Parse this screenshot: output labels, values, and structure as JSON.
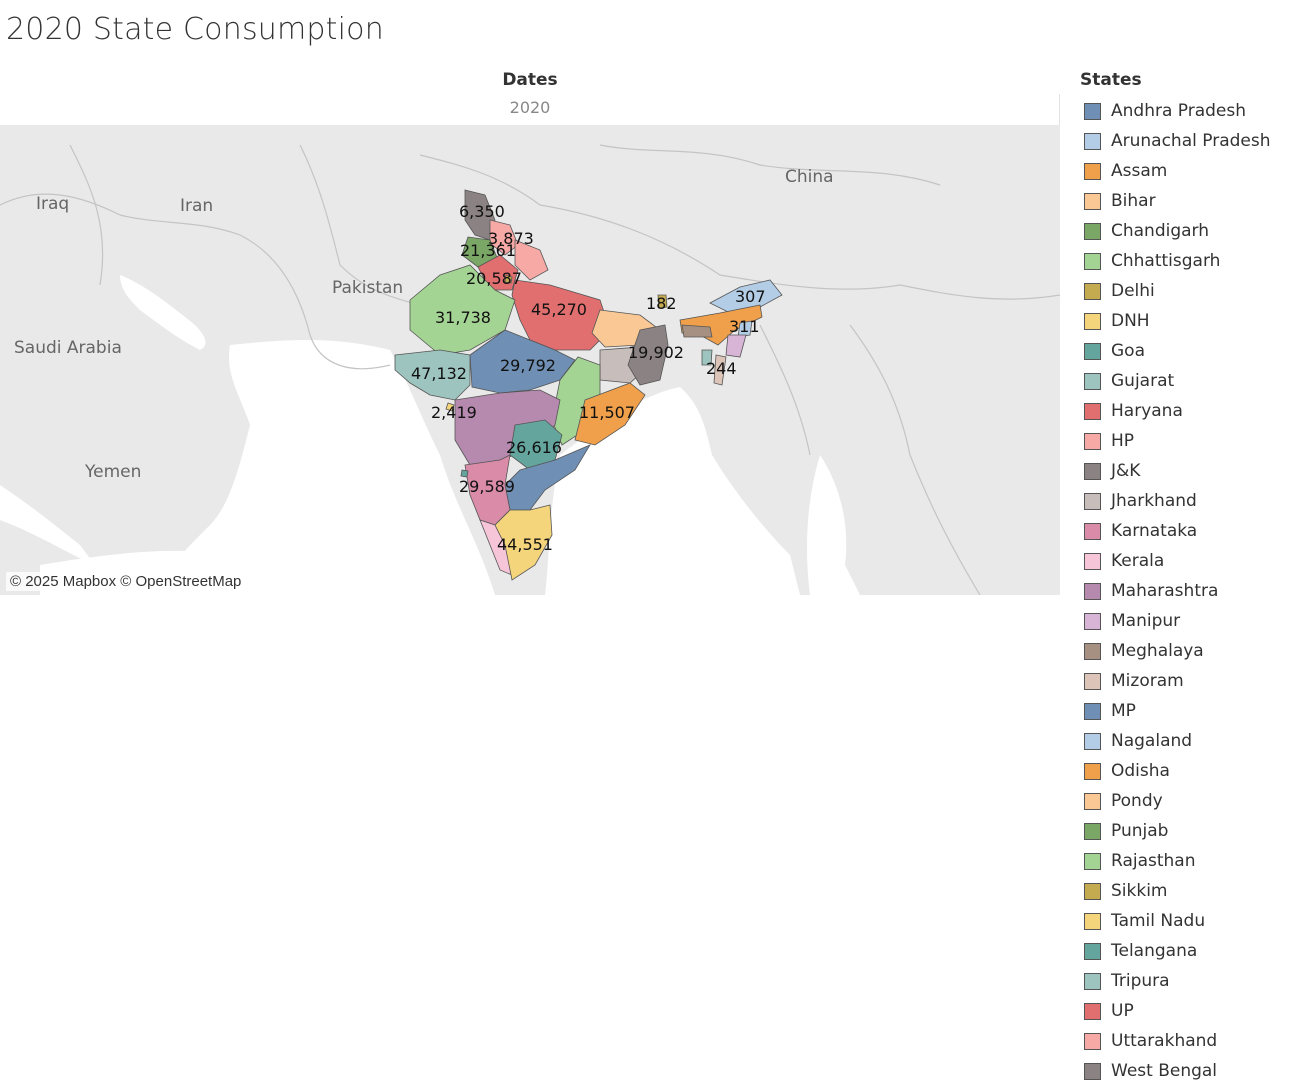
{
  "title": "2020 State Consumption",
  "dimension": {
    "header": "Dates",
    "value": "2020"
  },
  "map": {
    "attribution": "© 2025 Mapbox © OpenStreetMap",
    "countries": [
      "China",
      "Iraq",
      "Iran",
      "Pakistan",
      "Saudi Arabia",
      "Yemen"
    ],
    "values": [
      {
        "label": "6,350",
        "state": "J&K"
      },
      {
        "label": "3,873",
        "state": "HP"
      },
      {
        "label": "21,361",
        "state": "Punjab"
      },
      {
        "label": "20,587",
        "state": "Haryana"
      },
      {
        "label": "45,270",
        "state": "UP"
      },
      {
        "label": "31,738",
        "state": "Rajasthan"
      },
      {
        "label": "182",
        "state": "Sikkim"
      },
      {
        "label": "307",
        "state": "Arunachal Pradesh"
      },
      {
        "label": "311",
        "state": "Assam"
      },
      {
        "label": "19,902",
        "state": "West Bengal"
      },
      {
        "label": "244",
        "state": "Mizoram"
      },
      {
        "label": "29,792",
        "state": "MP"
      },
      {
        "label": "47,132",
        "state": "Gujarat"
      },
      {
        "label": "2,419",
        "state": "DNH"
      },
      {
        "label": "11,507",
        "state": "Odisha"
      },
      {
        "label": "26,616",
        "state": "Telangana"
      },
      {
        "label": "29,589",
        "state": "Karnataka"
      },
      {
        "label": "44,551",
        "state": "Tamil Nadu"
      }
    ]
  },
  "legend": {
    "title": "States",
    "items": [
      {
        "label": "Andhra Pradesh",
        "color": "#6f8fb4"
      },
      {
        "label": "Arunachal Pradesh",
        "color": "#b3cde6"
      },
      {
        "label": "Assam",
        "color": "#f0a04b"
      },
      {
        "label": "Bihar",
        "color": "#f9c894"
      },
      {
        "label": "Chandigarh",
        "color": "#7aa765"
      },
      {
        "label": "Chhattisgarh",
        "color": "#a4d493"
      },
      {
        "label": "Delhi",
        "color": "#c5ab50"
      },
      {
        "label": "DNH",
        "color": "#f5d57b"
      },
      {
        "label": "Goa",
        "color": "#64a59e"
      },
      {
        "label": "Gujarat",
        "color": "#9dc4bf"
      },
      {
        "label": "Haryana",
        "color": "#e16f6f"
      },
      {
        "label": "HP",
        "color": "#f7a9a6"
      },
      {
        "label": "J&K",
        "color": "#8b8383"
      },
      {
        "label": "Jharkhand",
        "color": "#c7bdbb"
      },
      {
        "label": "Karnataka",
        "color": "#d98ba8"
      },
      {
        "label": "Kerala",
        "color": "#f7c5d8"
      },
      {
        "label": "Maharashtra",
        "color": "#b68aaf"
      },
      {
        "label": "Manipur",
        "color": "#d8b5d6"
      },
      {
        "label": "Meghalaya",
        "color": "#a69081"
      },
      {
        "label": "Mizoram",
        "color": "#dcc4b9"
      },
      {
        "label": "MP",
        "color": "#6f8fb4"
      },
      {
        "label": "Nagaland",
        "color": "#b3cde6"
      },
      {
        "label": "Odisha",
        "color": "#f0a04b"
      },
      {
        "label": "Pondy",
        "color": "#f9c894"
      },
      {
        "label": "Punjab",
        "color": "#7aa765"
      },
      {
        "label": "Rajasthan",
        "color": "#a4d493"
      },
      {
        "label": "Sikkim",
        "color": "#c5ab50"
      },
      {
        "label": "Tamil Nadu",
        "color": "#f5d57b"
      },
      {
        "label": "Telangana",
        "color": "#64a59e"
      },
      {
        "label": "Tripura",
        "color": "#9dc4bf"
      },
      {
        "label": "UP",
        "color": "#e16f6f"
      },
      {
        "label": "Uttarakhand",
        "color": "#f7a9a6"
      },
      {
        "label": "West Bengal",
        "color": "#8b8383"
      }
    ]
  }
}
